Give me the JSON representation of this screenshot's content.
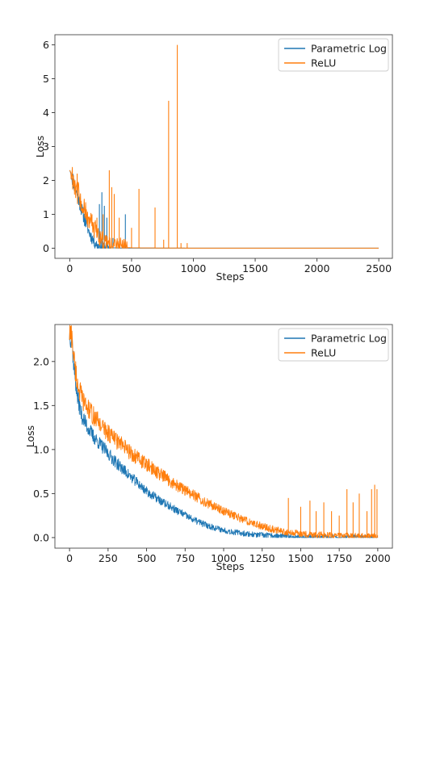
{
  "colors": {
    "blue": "#1f77b4",
    "orange": "#ff7f0e"
  },
  "chart_data": [
    {
      "type": "line",
      "title": "",
      "xlabel": "Steps",
      "ylabel": "Loss",
      "xlim": [
        -120,
        2610
      ],
      "ylim": [
        -0.3,
        6.3
      ],
      "xticks": [
        0,
        500,
        1000,
        1500,
        2000,
        2500
      ],
      "yticks": [
        0,
        1,
        2,
        3,
        4,
        5,
        6
      ],
      "legend": "top-right",
      "series": [
        {
          "name": "Parametric Log",
          "color": "#1f77b4",
          "x": [
            0,
            20,
            40,
            60,
            80,
            100,
            120,
            140,
            160,
            180,
            200,
            220,
            240,
            260,
            280,
            300,
            320,
            340,
            360,
            400,
            500,
            1000,
            1500,
            2000,
            2500
          ],
          "y": [
            2.3,
            2.1,
            1.85,
            1.6,
            1.35,
            1.1,
            0.85,
            0.65,
            0.45,
            0.3,
            0.18,
            0.1,
            0.06,
            0.04,
            0.03,
            0.02,
            0.015,
            0.01,
            0.01,
            0.005,
            0.0,
            0.0,
            0.0,
            0.0,
            0.0
          ],
          "spikes": [
            [
              240,
              1.3
            ],
            [
              260,
              1.65
            ],
            [
              280,
              1.25
            ],
            [
              300,
              0.9
            ],
            [
              350,
              0.3
            ],
            [
              450,
              1.0
            ]
          ]
        },
        {
          "name": "ReLU",
          "color": "#ff7f0e",
          "x": [
            0,
            20,
            40,
            60,
            80,
            100,
            120,
            140,
            160,
            180,
            200,
            220,
            240,
            260,
            280,
            300,
            320,
            340,
            360,
            400,
            450,
            500,
            1000,
            1500,
            2000,
            2500
          ],
          "y": [
            2.3,
            2.15,
            1.95,
            1.7,
            1.5,
            1.3,
            1.1,
            0.95,
            0.8,
            0.65,
            0.55,
            0.45,
            0.35,
            0.28,
            0.2,
            0.15,
            0.1,
            0.07,
            0.05,
            0.03,
            0.02,
            0.01,
            0.0,
            0.0,
            0.0,
            0.0
          ],
          "spikes": [
            [
              60,
              2.2
            ],
            [
              140,
              1.0
            ],
            [
              180,
              1.0
            ],
            [
              220,
              0.9
            ],
            [
              270,
              1.0
            ],
            [
              320,
              2.3
            ],
            [
              340,
              1.8
            ],
            [
              360,
              1.6
            ],
            [
              400,
              0.9
            ],
            [
              500,
              0.6
            ],
            [
              560,
              1.75
            ],
            [
              690,
              1.2
            ],
            [
              760,
              0.25
            ],
            [
              800,
              4.35
            ],
            [
              870,
              6.0
            ],
            [
              900,
              0.15
            ],
            [
              950,
              0.15
            ]
          ]
        }
      ]
    },
    {
      "type": "line",
      "title": "",
      "xlabel": "Steps",
      "ylabel": "Loss",
      "xlim": [
        -95,
        2095
      ],
      "ylim": [
        -0.12,
        2.42
      ],
      "xticks": [
        0,
        250,
        500,
        750,
        1000,
        1250,
        1500,
        1750,
        2000
      ],
      "yticks": [
        0.0,
        0.5,
        1.0,
        1.5,
        2.0
      ],
      "ytick_labels": [
        "0.0",
        "0.5",
        "1.0",
        "1.5",
        "2.0"
      ],
      "legend": "top-right",
      "series": [
        {
          "name": "Parametric Log",
          "color": "#1f77b4",
          "x": [
            0,
            15,
            30,
            50,
            75,
            100,
            150,
            200,
            250,
            300,
            400,
            500,
            600,
            700,
            800,
            900,
            1000,
            1100,
            1200,
            1300,
            1400,
            1500,
            1750,
            2000
          ],
          "y": [
            2.3,
            2.25,
            1.9,
            1.6,
            1.4,
            1.3,
            1.15,
            1.05,
            0.95,
            0.85,
            0.68,
            0.52,
            0.4,
            0.3,
            0.2,
            0.13,
            0.08,
            0.05,
            0.03,
            0.02,
            0.01,
            0.0,
            0.0,
            0.0
          ]
        },
        {
          "name": "ReLU",
          "color": "#ff7f0e",
          "x": [
            0,
            15,
            30,
            50,
            75,
            100,
            150,
            200,
            250,
            300,
            400,
            500,
            600,
            700,
            800,
            900,
            1000,
            1100,
            1200,
            1300,
            1400,
            1500,
            1600,
            1700,
            1800,
            1900,
            2000
          ],
          "y": [
            2.3,
            2.28,
            2.0,
            1.75,
            1.6,
            1.5,
            1.38,
            1.28,
            1.18,
            1.1,
            0.95,
            0.82,
            0.7,
            0.58,
            0.48,
            0.38,
            0.3,
            0.22,
            0.15,
            0.1,
            0.06,
            0.04,
            0.03,
            0.02,
            0.015,
            0.01,
            0.01
          ],
          "spikes": [
            [
              1420,
              0.45
            ],
            [
              1500,
              0.35
            ],
            [
              1560,
              0.42
            ],
            [
              1600,
              0.3
            ],
            [
              1650,
              0.4
            ],
            [
              1700,
              0.3
            ],
            [
              1750,
              0.25
            ],
            [
              1800,
              0.55
            ],
            [
              1840,
              0.4
            ],
            [
              1880,
              0.5
            ],
            [
              1930,
              0.3
            ],
            [
              1960,
              0.55
            ],
            [
              1980,
              0.6
            ],
            [
              1995,
              0.55
            ]
          ]
        }
      ]
    }
  ]
}
